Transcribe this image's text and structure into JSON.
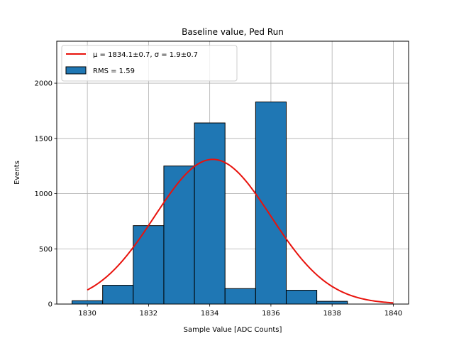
{
  "chart_data": {
    "type": "bar",
    "title": "Baseline value, Ped Run",
    "xlabel": "Sample Value [ADC Counts]",
    "ylabel": "Events",
    "xlim": [
      1829.0,
      1840.5
    ],
    "ylim": [
      0,
      2380
    ],
    "grid": true,
    "legend_position": "top-left",
    "xticks": [
      1830,
      1832,
      1834,
      1836,
      1838,
      1840
    ],
    "yticks": [
      0,
      500,
      1000,
      1500,
      2000
    ],
    "bins": [
      {
        "x0": 1829.5,
        "x1": 1830.5,
        "value": 30
      },
      {
        "x0": 1830.5,
        "x1": 1831.5,
        "value": 170
      },
      {
        "x0": 1831.5,
        "x1": 1832.5,
        "value": 710
      },
      {
        "x0": 1832.5,
        "x1": 1833.5,
        "value": 1250
      },
      {
        "x0": 1833.5,
        "x1": 1834.5,
        "value": 1640
      },
      {
        "x0": 1834.5,
        "x1": 1835.5,
        "value": 140
      },
      {
        "x0": 1835.5,
        "x1": 1836.5,
        "value": 1830
      },
      {
        "x0": 1836.5,
        "x1": 1837.5,
        "value": 125
      },
      {
        "x0": 1837.5,
        "x1": 1838.5,
        "value": 25
      }
    ],
    "fit": {
      "mu": 1834.1,
      "sigma": 1.9,
      "amplitude": 1310,
      "x_range": [
        1830,
        1840
      ]
    },
    "legend": [
      {
        "label_mu": "μ = 1834.1±0.7, ",
        "label_sigma": "σ = 1.9±0.7",
        "color": "#e8120c"
      },
      {
        "label": "RMS = 1.59",
        "color": "#1f77b4"
      }
    ],
    "colors": {
      "bar_fill": "#1f77b4",
      "bar_edge": "#000000",
      "fit_line": "#e8120c",
      "grid": "#b0b0b0"
    }
  }
}
